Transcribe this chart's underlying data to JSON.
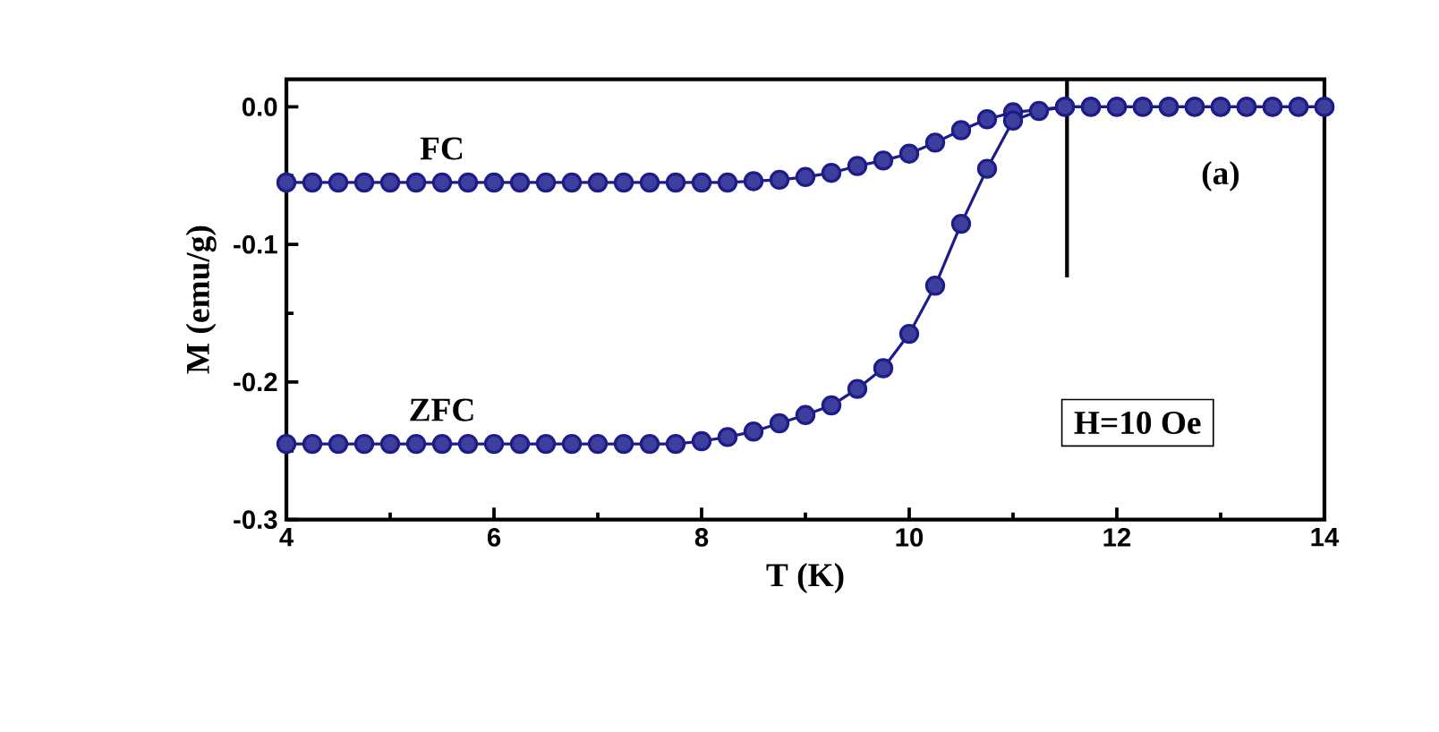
{
  "chart_data": {
    "type": "line",
    "xlabel": "T (K)",
    "ylabel": "M (emu/g)",
    "x": [
      4.0,
      4.25,
      4.5,
      4.75,
      5.0,
      5.25,
      5.5,
      5.75,
      6.0,
      6.25,
      6.5,
      6.75,
      7.0,
      7.25,
      7.5,
      7.75,
      8.0,
      8.25,
      8.5,
      8.75,
      9.0,
      9.25,
      9.5,
      9.75,
      10.0,
      10.25,
      10.5,
      10.75,
      11.0,
      11.25,
      11.5,
      11.75,
      12.0,
      12.25,
      12.5,
      12.75,
      13.0,
      13.25,
      13.5,
      13.75,
      14.0
    ],
    "series": [
      {
        "name": "FC",
        "color": "#1c1c8a",
        "values": [
          -0.055,
          -0.055,
          -0.055,
          -0.055,
          -0.055,
          -0.055,
          -0.055,
          -0.055,
          -0.055,
          -0.055,
          -0.055,
          -0.055,
          -0.055,
          -0.055,
          -0.055,
          -0.055,
          -0.055,
          -0.055,
          -0.054,
          -0.053,
          -0.051,
          -0.048,
          -0.043,
          -0.039,
          -0.034,
          -0.026,
          -0.017,
          -0.009,
          -0.004,
          null,
          0,
          0,
          0,
          0,
          0,
          0,
          0,
          0,
          0,
          0,
          0
        ]
      },
      {
        "name": "ZFC",
        "color": "#1c1c8a",
        "values": [
          -0.245,
          -0.245,
          -0.245,
          -0.245,
          -0.245,
          -0.245,
          -0.245,
          -0.245,
          -0.245,
          -0.245,
          -0.245,
          -0.245,
          -0.245,
          -0.245,
          -0.245,
          -0.245,
          -0.243,
          -0.24,
          -0.236,
          -0.23,
          -0.224,
          -0.217,
          -0.205,
          -0.19,
          -0.165,
          -0.13,
          -0.085,
          -0.045,
          -0.01,
          -0.003,
          0,
          0,
          0,
          0,
          0,
          0,
          0,
          0,
          0,
          0,
          0
        ]
      }
    ],
    "xlim": [
      4,
      14
    ],
    "ylim": [
      -0.3,
      0.02
    ],
    "xticks": [
      4,
      6,
      8,
      10,
      12,
      14
    ],
    "yticks": [
      {
        "value": -0.3,
        "label": "-0.3"
      },
      {
        "value": -0.2,
        "label": "-0.2"
      },
      {
        "value": -0.1,
        "label": "-0.1"
      },
      {
        "value": 0,
        "label": "0.0"
      }
    ],
    "marker": "circle",
    "line_style": "solid",
    "ref_lines": [
      {
        "axis": "x",
        "value": 11.52,
        "color": "#000000"
      }
    ],
    "annotations": [
      "(a)",
      "H=10 Oe"
    ]
  }
}
